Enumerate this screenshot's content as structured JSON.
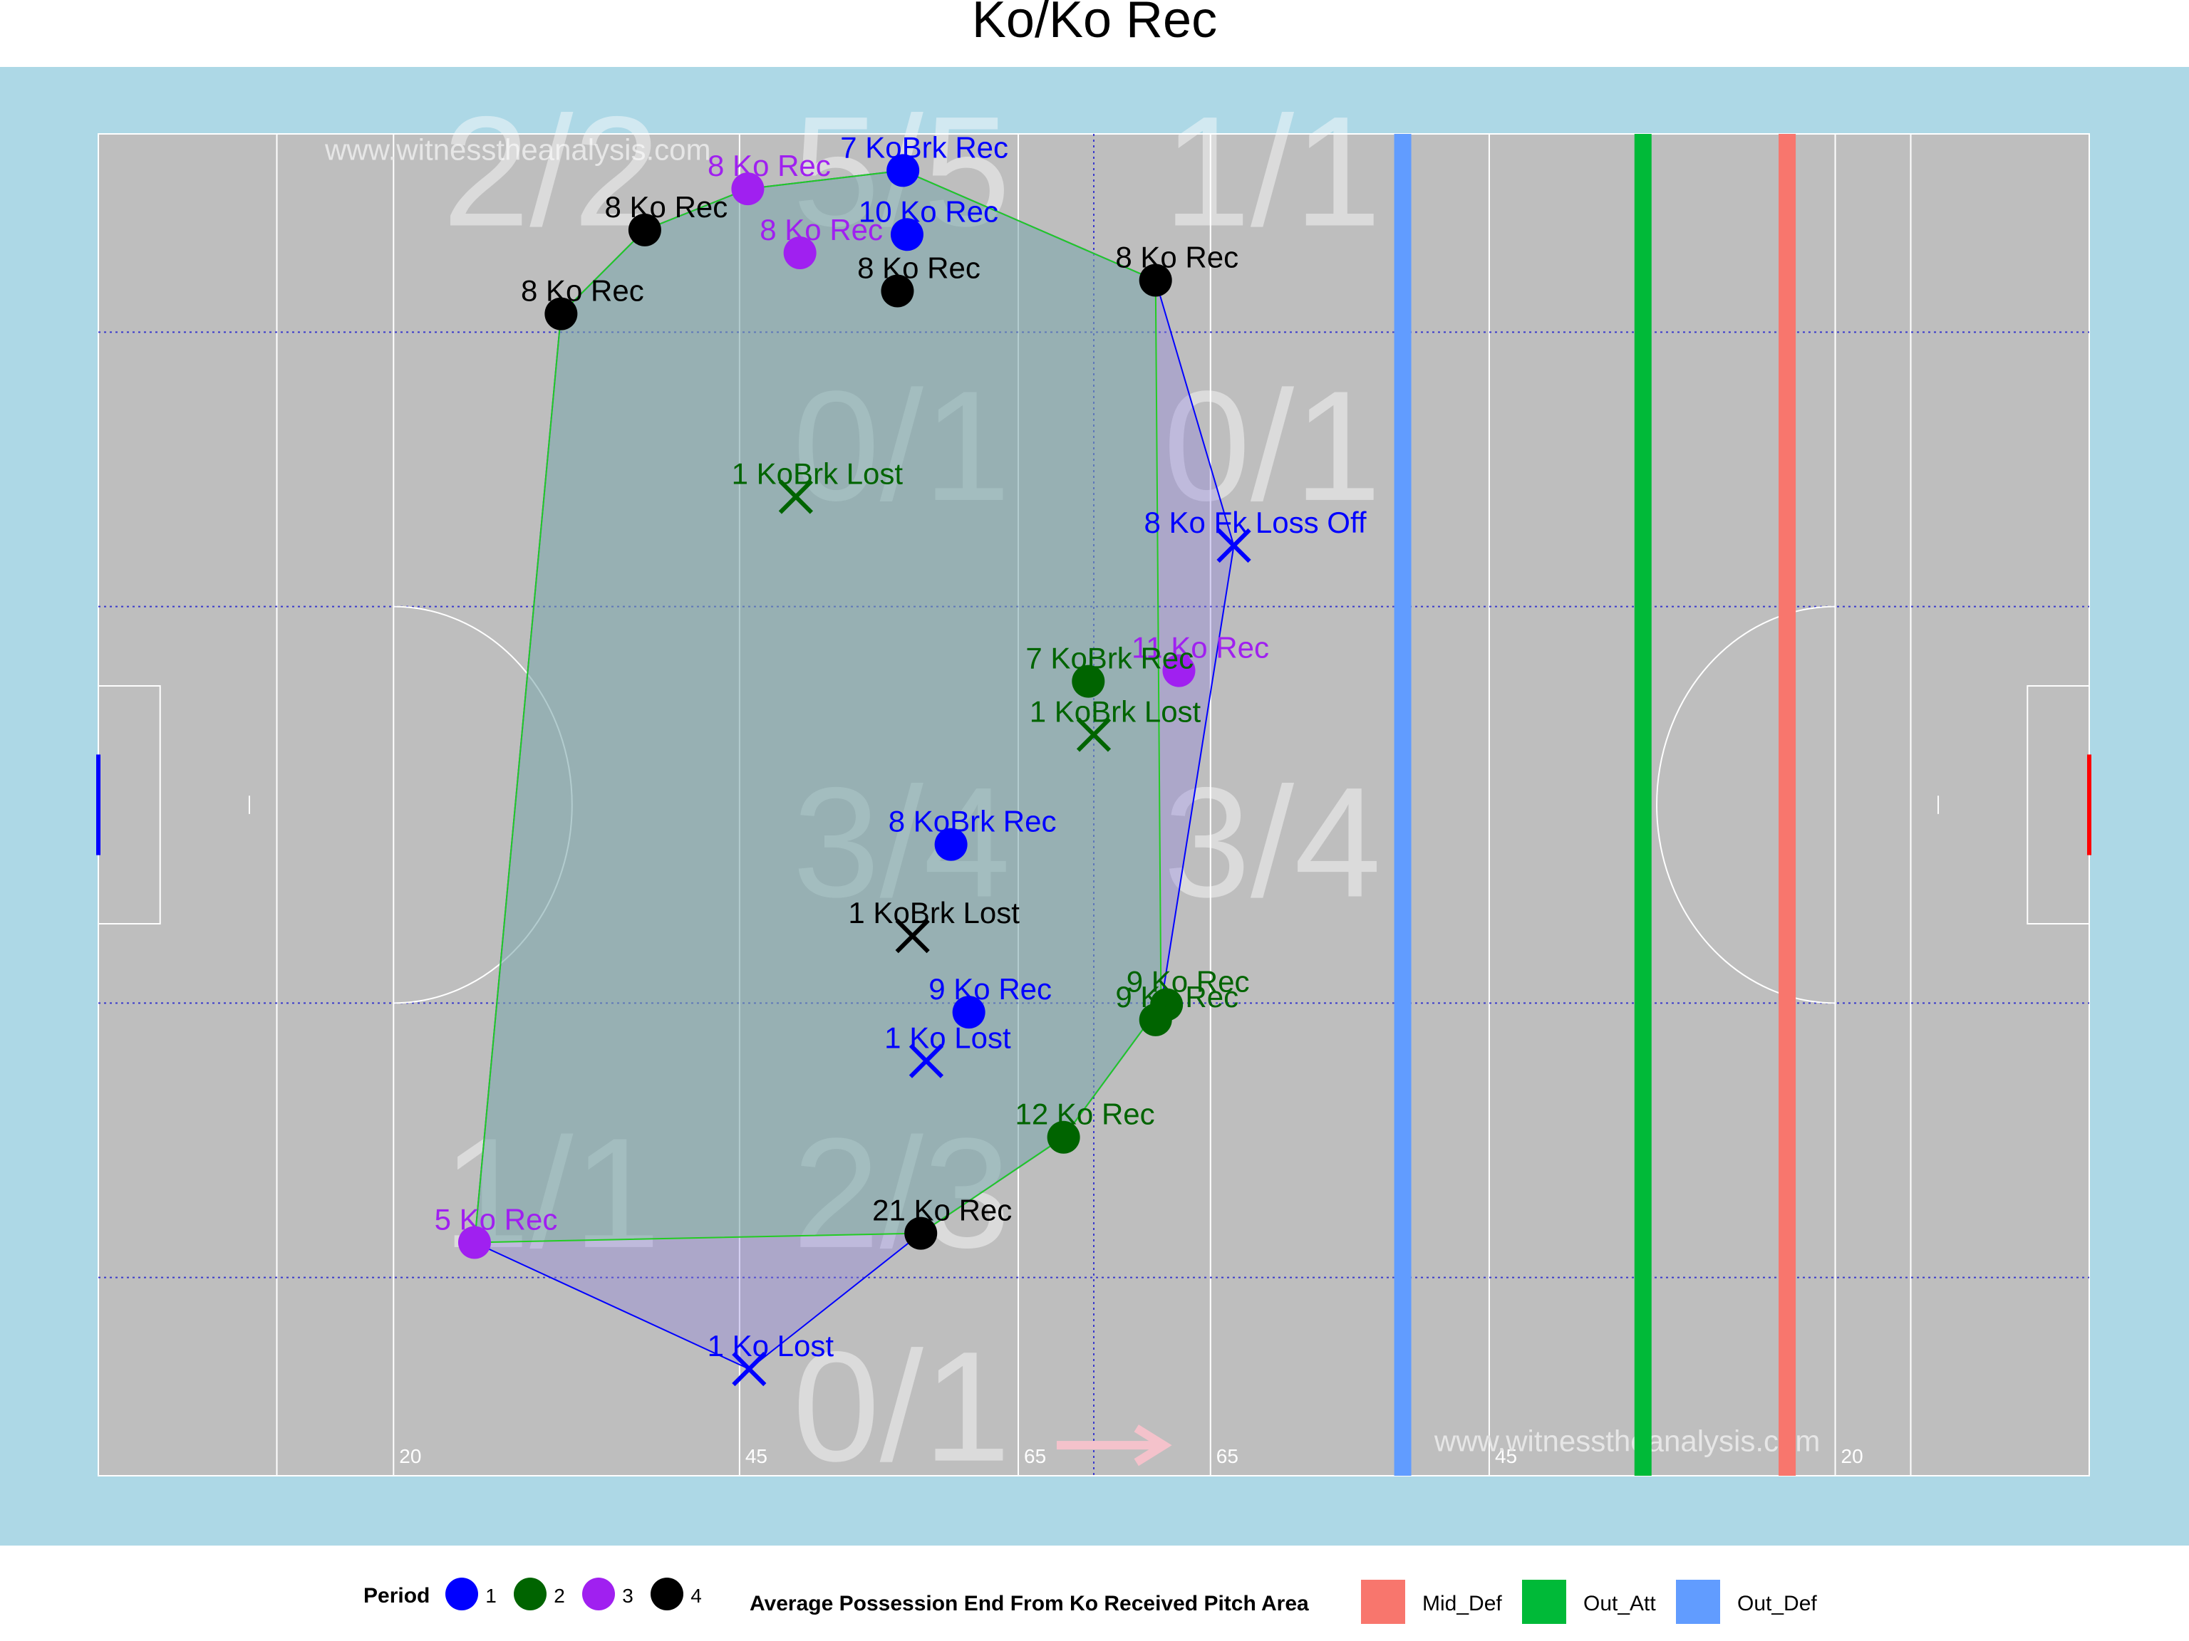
{
  "chart_data": {
    "type": "scatter",
    "title": "Ko/Ko Rec",
    "xlabel": "",
    "ylabel": "",
    "pitch": {
      "xlim": [
        0,
        145
      ],
      "ylim": [
        0,
        88
      ],
      "distance_markers": [
        {
          "x": 21.5,
          "label": "20"
        },
        {
          "x": 46.7,
          "label": "45"
        },
        {
          "x": 67,
          "label": "65"
        },
        {
          "x": 81,
          "label": "65"
        },
        {
          "x": 101.3,
          "label": "45"
        },
        {
          "x": 126.5,
          "label": "20"
        }
      ],
      "grid_x": [
        72.5
      ],
      "grid_y": [
        13,
        31,
        57,
        75
      ],
      "direction_arrow": "right",
      "watermarks": [
        "www.witnesstheanalysis.com",
        "www.witnesstheanalysis.com"
      ]
    },
    "zone_labels": [
      {
        "text": "2/2",
        "x": 33,
        "y": 82
      },
      {
        "text": "5/5",
        "x": 58.5,
        "y": 82
      },
      {
        "text": "1/1",
        "x": 85.5,
        "y": 82
      },
      {
        "text": "0/1",
        "x": 58.5,
        "y": 64
      },
      {
        "text": "0/1",
        "x": 85.5,
        "y": 64
      },
      {
        "text": "3/4",
        "x": 58.5,
        "y": 38
      },
      {
        "text": "3/4",
        "x": 85.5,
        "y": 38
      },
      {
        "text": "1/1",
        "x": 33,
        "y": 15
      },
      {
        "text": "2/3",
        "x": 58.5,
        "y": 15
      },
      {
        "text": "0/1",
        "x": 58.5,
        "y": 1
      }
    ],
    "avg_lines": [
      {
        "name": "Out_Def",
        "x": 95,
        "color": "#619CFF"
      },
      {
        "name": "Out_Att",
        "x": 112.5,
        "color": "#00BA38"
      },
      {
        "name": "Mid_Def",
        "x": 123,
        "color": "#F8766D"
      }
    ],
    "period_colors": {
      "1": "#0000FF",
      "2": "#006400",
      "3": "#A020F0",
      "4": "#000000"
    },
    "events": [
      {
        "x": 58.6,
        "y": 85.6,
        "period": 1,
        "marker": "circle",
        "label": "7 KoBrk Rec"
      },
      {
        "x": 47.3,
        "y": 84.4,
        "period": 3,
        "marker": "circle",
        "label": "8 Ko Rec"
      },
      {
        "x": 39.8,
        "y": 81.7,
        "period": 4,
        "marker": "circle",
        "label": "8 Ko Rec"
      },
      {
        "x": 58.9,
        "y": 81.4,
        "period": 1,
        "marker": "circle",
        "label": "10 Ko Rec"
      },
      {
        "x": 51.1,
        "y": 80.2,
        "period": 3,
        "marker": "circle",
        "label": "8 Ko Rec"
      },
      {
        "x": 58.2,
        "y": 77.7,
        "period": 4,
        "marker": "circle",
        "label": "8 Ko Rec"
      },
      {
        "x": 77,
        "y": 78.4,
        "period": 4,
        "marker": "circle",
        "label": "8 Ko Rec"
      },
      {
        "x": 33.7,
        "y": 76.2,
        "period": 4,
        "marker": "circle",
        "label": "8 Ko Rec"
      },
      {
        "x": 50.8,
        "y": 64.2,
        "period": 2,
        "marker": "cross",
        "label": "1 KoBrk Lost"
      },
      {
        "x": 82.7,
        "y": 61.0,
        "period": 1,
        "marker": "cross",
        "label": "8 Ko Fk Loss Off"
      },
      {
        "x": 78.7,
        "y": 52.8,
        "period": 3,
        "marker": "circle",
        "label": "11 Ko Rec"
      },
      {
        "x": 72.1,
        "y": 52.1,
        "period": 2,
        "marker": "circle",
        "label": "7 KoBrk Rec"
      },
      {
        "x": 72.5,
        "y": 48.6,
        "period": 2,
        "marker": "cross",
        "label": "1 KoBrk Lost"
      },
      {
        "x": 62.1,
        "y": 41.4,
        "period": 1,
        "marker": "circle",
        "label": "8 KoBrk Rec"
      },
      {
        "x": 59.3,
        "y": 35.4,
        "period": 4,
        "marker": "cross",
        "label": "1 KoBrk Lost"
      },
      {
        "x": 77.8,
        "y": 30.9,
        "period": 2,
        "marker": "circle",
        "label": "9 Ko Rec"
      },
      {
        "x": 63.4,
        "y": 30.4,
        "period": 1,
        "marker": "circle",
        "label": "9 Ko Rec"
      },
      {
        "x": 77.0,
        "y": 29.9,
        "period": 2,
        "marker": "circle",
        "label": "9 Ko Rec"
      },
      {
        "x": 60.3,
        "y": 27.2,
        "period": 1,
        "marker": "cross",
        "label": "1 Ko Lost"
      },
      {
        "x": 70.3,
        "y": 22.2,
        "period": 2,
        "marker": "circle",
        "label": "12 Ko Rec"
      },
      {
        "x": 59.9,
        "y": 15.9,
        "period": 4,
        "marker": "circle",
        "label": "21 Ko Rec"
      },
      {
        "x": 27.4,
        "y": 15.3,
        "period": 3,
        "marker": "circle",
        "label": "5 Ko Rec"
      },
      {
        "x": 47.4,
        "y": 7.0,
        "period": 1,
        "marker": "cross",
        "label": "1 Ko Lost"
      }
    ],
    "hulls": [
      {
        "name": "Ko Rec",
        "fill": "#6FC48A",
        "stroke": "#22CC22",
        "points": [
          [
            58.6,
            85.6
          ],
          [
            77.0,
            78.4
          ],
          [
            77.4,
            30.9
          ],
          [
            70.3,
            22.2
          ],
          [
            59.9,
            15.9
          ],
          [
            27.4,
            15.3
          ],
          [
            33.7,
            76.2
          ],
          [
            39.8,
            81.7
          ],
          [
            47.3,
            84.4
          ]
        ]
      },
      {
        "name": "Ko Lost",
        "fill": "#8C7FE0",
        "stroke": "#0000FF",
        "points": [
          [
            77.0,
            78.4
          ],
          [
            82.7,
            61.0
          ],
          [
            77.4,
            30.9
          ],
          [
            70.3,
            22.2
          ],
          [
            59.9,
            15.9
          ],
          [
            47.4,
            7.0
          ],
          [
            27.4,
            15.3
          ],
          [
            33.7,
            76.2
          ],
          [
            39.8,
            81.7
          ],
          [
            47.3,
            84.4
          ],
          [
            58.6,
            85.6
          ]
        ]
      }
    ],
    "legend": {
      "period_title": "Period",
      "periods": [
        "1",
        "2",
        "3",
        "4"
      ],
      "avg_title": "Average Possession End From Ko Received Pitch Area",
      "avg_entries": [
        {
          "name": "Mid_Def",
          "color": "#F8766D"
        },
        {
          "name": "Out_Att",
          "color": "#00BA38"
        },
        {
          "name": "Out_Def",
          "color": "#619CFF"
        }
      ]
    }
  }
}
